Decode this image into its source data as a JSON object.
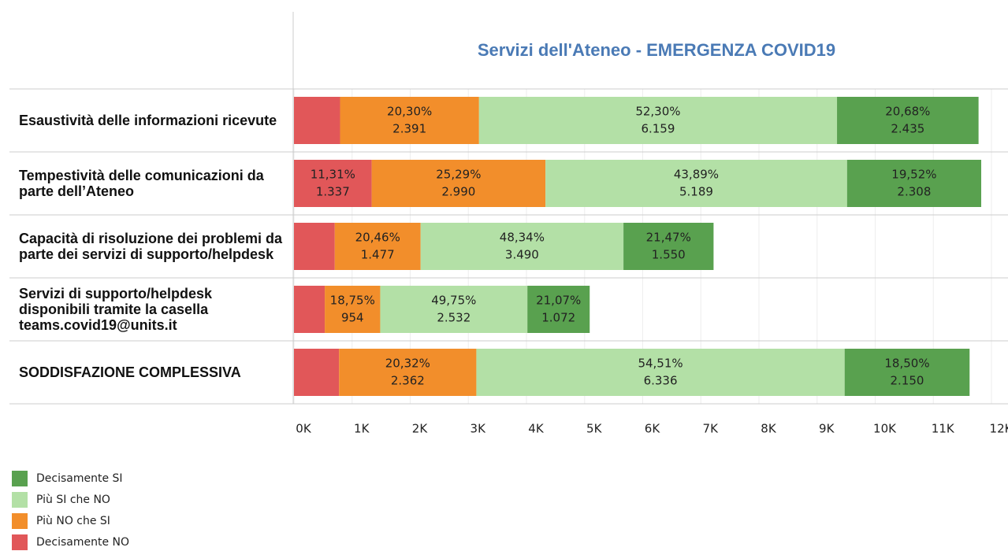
{
  "chart_data": {
    "type": "stacked-bar-horizontal",
    "title": "Servizi dell'Ateneo - EMERGENZA COVID19",
    "categories": [
      "Esaustività delle informazioni ricevute",
      "Tempestività delle comunicazioni da parte dell’Ateneo",
      "Capacità di risoluzione dei problemi da parte dei servizi di supporto/helpdesk",
      "Servizi di supporto/helpdesk disponibili tramite la casella teams.covid19@units.it",
      "SODDISFAZIONE COMPLESSIVA"
    ],
    "series": [
      {
        "name": "Decisamente NO",
        "color": "#e15759",
        "values": [
          793,
          1337,
          702,
          530,
          776
        ],
        "value_labels": [
          null,
          "1.337",
          null,
          null,
          null
        ],
        "percent_labels": [
          null,
          "11,31%",
          null,
          null,
          null
        ]
      },
      {
        "name": "Più NO che SI",
        "color": "#f28e2b",
        "values": [
          2391,
          2990,
          1477,
          954,
          2362
        ],
        "value_labels": [
          "2.391",
          "2.990",
          "1.477",
          "954",
          "2.362"
        ],
        "percent_labels": [
          "20,30%",
          "25,29%",
          "20,46%",
          "18,75%",
          "20,32%"
        ]
      },
      {
        "name": "Più SI che NO",
        "color": "#b3e0a6",
        "values": [
          6159,
          5189,
          3490,
          2532,
          6336
        ],
        "value_labels": [
          "6.159",
          "5.189",
          "3.490",
          "2.532",
          "6.336"
        ],
        "percent_labels": [
          "52,30%",
          "43,89%",
          "48,34%",
          "49,75%",
          "54,51%"
        ]
      },
      {
        "name": "Decisamente SI",
        "color": "#59a14f",
        "values": [
          2435,
          2308,
          1550,
          1072,
          2150
        ],
        "value_labels": [
          "2.435",
          "2.308",
          "1.550",
          "1.072",
          "2.150"
        ],
        "percent_labels": [
          "20,68%",
          "19,52%",
          "21,47%",
          "21,07%",
          "18,50%"
        ]
      }
    ],
    "xlim": [
      0,
      12000
    ],
    "xticks": [
      {
        "value": 0,
        "label": "0K"
      },
      {
        "value": 1000,
        "label": "1K"
      },
      {
        "value": 2000,
        "label": "2K"
      },
      {
        "value": 3000,
        "label": "3K"
      },
      {
        "value": 4000,
        "label": "4K"
      },
      {
        "value": 5000,
        "label": "5K"
      },
      {
        "value": 6000,
        "label": "6K"
      },
      {
        "value": 7000,
        "label": "7K"
      },
      {
        "value": 8000,
        "label": "8K"
      },
      {
        "value": 9000,
        "label": "9K"
      },
      {
        "value": 10000,
        "label": "10K"
      },
      {
        "value": 11000,
        "label": "11K"
      },
      {
        "value": 12000,
        "label": "12K"
      }
    ],
    "grid": true
  }
}
